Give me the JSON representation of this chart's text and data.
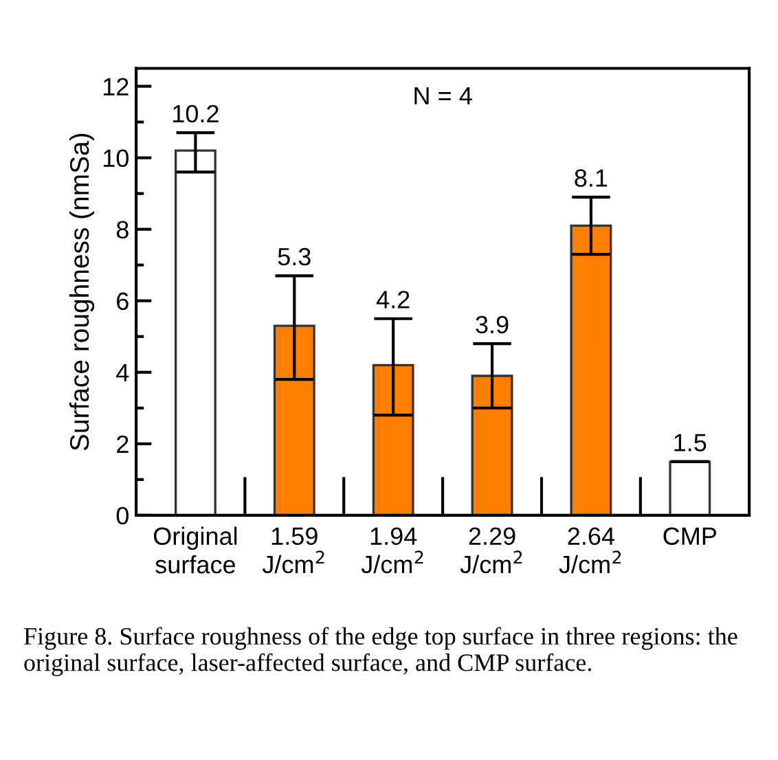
{
  "chart_data": {
    "type": "bar",
    "ylabel": "Surface roughness (nmSa)",
    "categories": [
      "Original\nsurface",
      "1.59\nJ/cm$^{2}$",
      "1.94\nJ/cm$^{2}$",
      "2.29\nJ/cm$^{2}$",
      "2.64\nJ/cm$^{2}$",
      "CMP"
    ],
    "values": [
      10.2,
      5.3,
      4.2,
      3.9,
      8.1,
      1.5
    ],
    "colors": [
      "#ffffff",
      "#ff8000",
      "#ff8000",
      "#ff8000",
      "#ff8000",
      "#ffffff"
    ],
    "errors": [
      [
        9.6,
        10.7
      ],
      [
        3.8,
        6.7
      ],
      [
        2.8,
        5.5
      ],
      [
        3.0,
        4.8
      ],
      [
        7.3,
        8.9
      ],
      0
    ],
    "data_labels": true,
    "ylim": [
      0,
      12.5
    ],
    "yticks": [
      0,
      {
        "value": 1,
        "label": null
      },
      2,
      {
        "value": 3,
        "label": null
      },
      4,
      {
        "value": 5,
        "label": null
      },
      6,
      {
        "value": 7,
        "label": null
      },
      8,
      {
        "value": 9,
        "label": null
      },
      10,
      {
        "value": 11,
        "label": null
      },
      12
    ],
    "grid": false,
    "legend": false,
    "annotations": [
      "N = 4",
      "Figure 8. Surface roughness of the edge top surface in three regions: the original surface, laser-affected surface, and CMP surface."
    ]
  }
}
